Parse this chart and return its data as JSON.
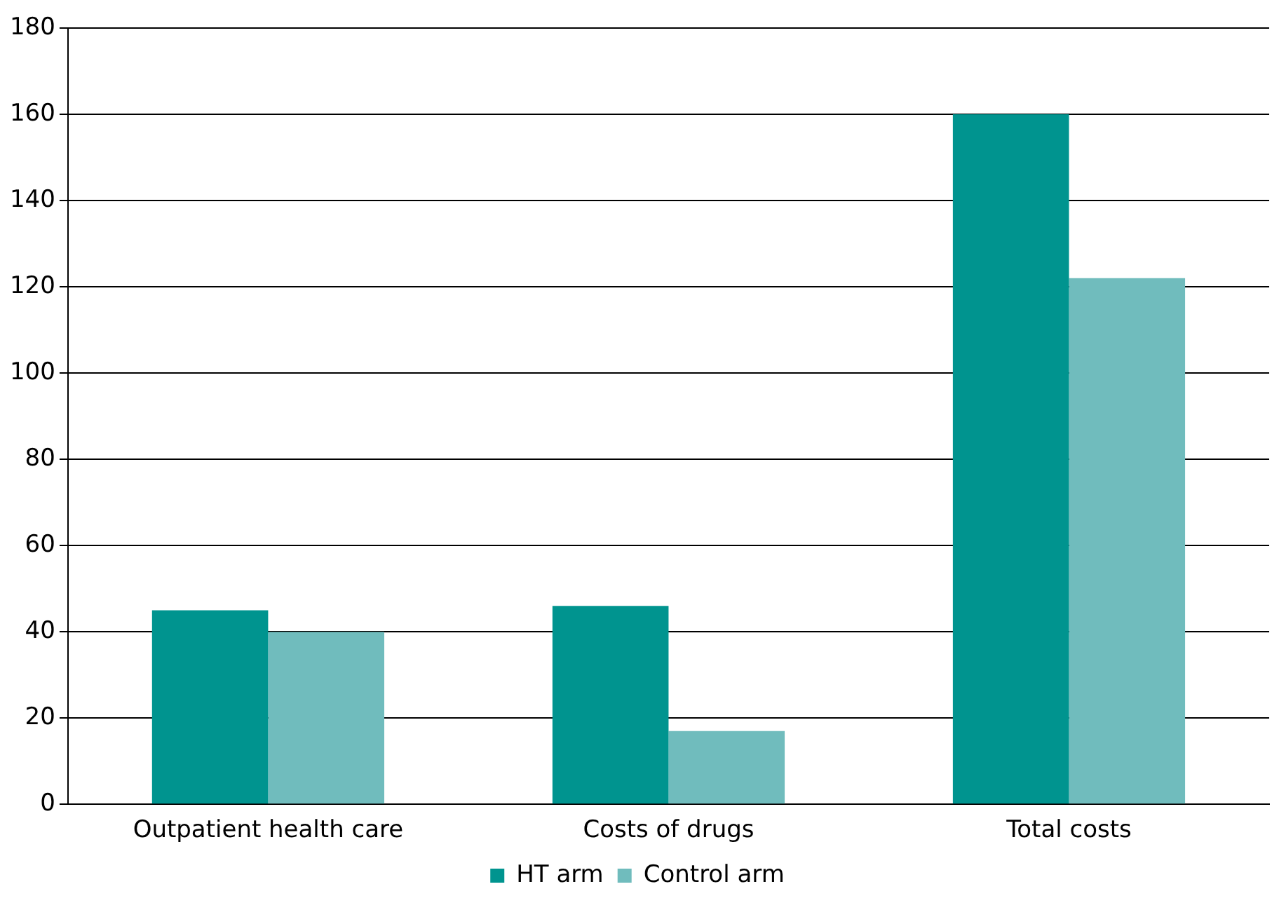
{
  "chart_data": {
    "type": "bar",
    "categories": [
      "Outpatient health care",
      "Costs of drugs",
      "Total costs"
    ],
    "series": [
      {
        "name": "HT arm",
        "color": "#00948f",
        "values": [
          45,
          46,
          160
        ]
      },
      {
        "name": "Control arm",
        "color": "#70bcbd",
        "values": [
          40,
          17,
          122
        ]
      }
    ],
    "ylim": [
      0,
      180
    ],
    "yticks": [
      0,
      20,
      40,
      60,
      80,
      100,
      120,
      140,
      160,
      180
    ],
    "grid": "y",
    "legend": "bottom"
  }
}
